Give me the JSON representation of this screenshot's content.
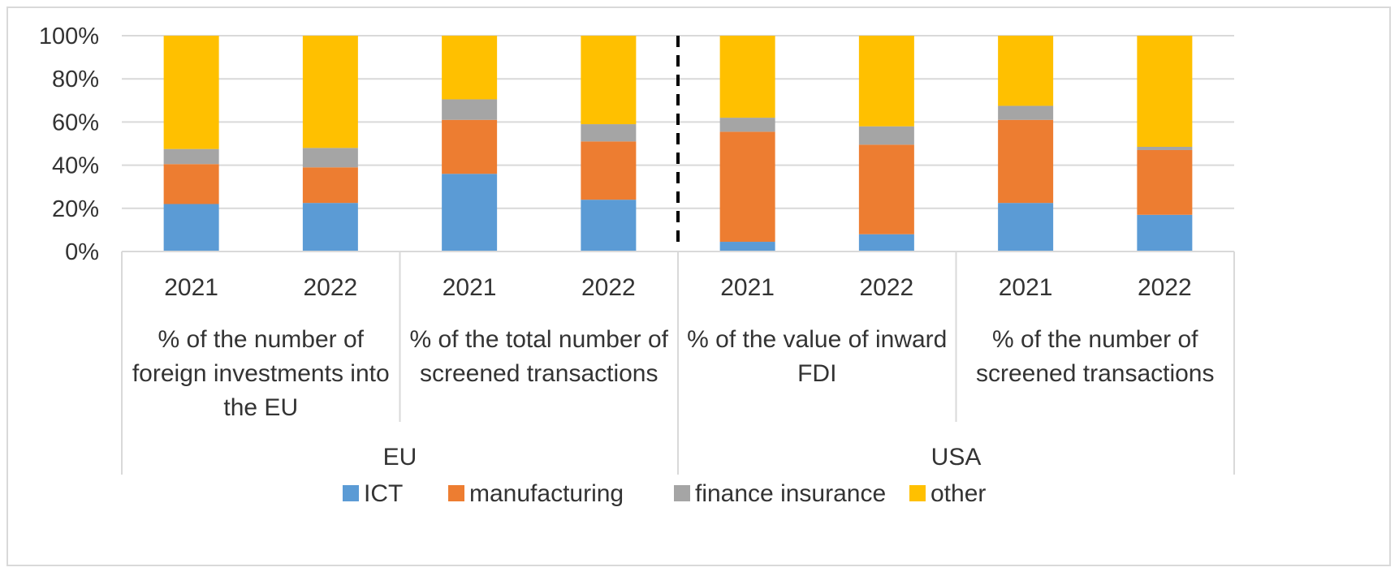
{
  "chart_data": {
    "type": "bar",
    "stacked": true,
    "percent": true,
    "title": "",
    "ylabel": "",
    "ylim": [
      0,
      100
    ],
    "yticks": [
      "0%",
      "20%",
      "40%",
      "60%",
      "80%",
      "100%"
    ],
    "yticks_values": [
      0,
      20,
      40,
      60,
      80,
      100
    ],
    "grid": true,
    "legend_position": "bottom",
    "categories": [
      "2021",
      "2022",
      "2021",
      "2022",
      "2021",
      "2022",
      "2021",
      "2022"
    ],
    "groups": [
      {
        "label_lines": [
          "% of the number of",
          "foreign investments into",
          "the EU"
        ],
        "region": "EU"
      },
      {
        "label_lines": [
          "% of the total number of",
          "screened transactions"
        ],
        "region": "EU"
      },
      {
        "label_lines": [
          "% of the value of inward",
          "FDI"
        ],
        "region": "USA"
      },
      {
        "label_lines": [
          "% of the number of",
          "screened transactions"
        ],
        "region": "USA"
      }
    ],
    "regions": [
      "EU",
      "USA"
    ],
    "divider_after_category": 4,
    "series": [
      {
        "name": "ICT",
        "color": "#5b9bd5",
        "values": [
          22,
          22.5,
          36,
          24,
          4.5,
          8,
          22.5,
          17
        ]
      },
      {
        "name": "manufacturing",
        "color": "#ed7d31",
        "values": [
          18.5,
          16.5,
          25,
          27,
          51,
          41.5,
          38.5,
          30
        ]
      },
      {
        "name": "finance insurance",
        "color": "#a5a5a5",
        "values": [
          7,
          9,
          9.5,
          8,
          6.5,
          8.5,
          6.5,
          1.5
        ]
      },
      {
        "name": "other",
        "color": "#ffc000",
        "values": [
          52.5,
          52,
          29.5,
          41,
          38,
          42,
          32.5,
          51.5
        ]
      }
    ]
  }
}
